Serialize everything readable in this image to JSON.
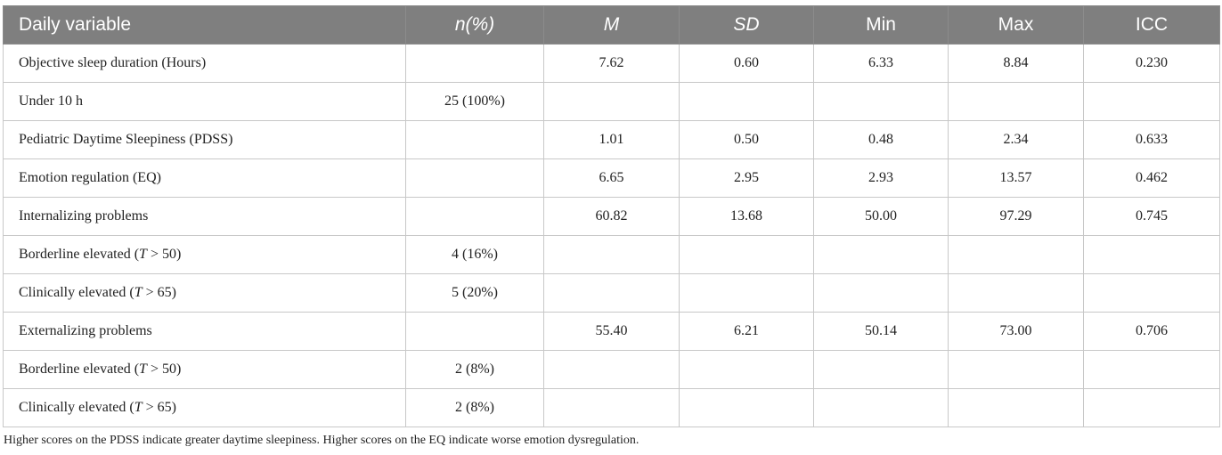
{
  "table": {
    "headers": [
      "Daily variable",
      "n(%)",
      "M",
      "SD",
      "Min",
      "Max",
      "ICC"
    ],
    "rows": [
      {
        "label": "Objective sleep duration (Hours)",
        "n": "",
        "m": "7.62",
        "sd": "0.60",
        "min": "6.33",
        "max": "8.84",
        "icc": "0.230"
      },
      {
        "label": "Under 10 h",
        "n": "25 (100%)",
        "m": "",
        "sd": "",
        "min": "",
        "max": "",
        "icc": ""
      },
      {
        "label": "Pediatric Daytime Sleepiness (PDSS)",
        "n": "",
        "m": "1.01",
        "sd": "0.50",
        "min": "0.48",
        "max": "2.34",
        "icc": "0.633"
      },
      {
        "label": "Emotion regulation (EQ)",
        "n": "",
        "m": "6.65",
        "sd": "2.95",
        "min": "2.93",
        "max": "13.57",
        "icc": "0.462"
      },
      {
        "label": "Internalizing problems",
        "n": "",
        "m": "60.82",
        "sd": "13.68",
        "min": "50.00",
        "max": "97.29",
        "icc": "0.745"
      },
      {
        "label_prefix": "Borderline elevated (",
        "label_var": "T",
        "label_suffix": " > 50)",
        "n": "4 (16%)",
        "m": "",
        "sd": "",
        "min": "",
        "max": "",
        "icc": ""
      },
      {
        "label_prefix": "Clinically elevated (",
        "label_var": "T",
        "label_suffix": " > 65)",
        "n": "5 (20%)",
        "m": "",
        "sd": "",
        "min": "",
        "max": "",
        "icc": ""
      },
      {
        "label": "Externalizing problems",
        "n": "",
        "m": "55.40",
        "sd": "6.21",
        "min": "50.14",
        "max": "73.00",
        "icc": "0.706"
      },
      {
        "label_prefix": "Borderline elevated (",
        "label_var": "T",
        "label_suffix": " > 50)",
        "n": "2 (8%)",
        "m": "",
        "sd": "",
        "min": "",
        "max": "",
        "icc": ""
      },
      {
        "label_prefix": "Clinically elevated (",
        "label_var": "T",
        "label_suffix": " > 65)",
        "n": "2 (8%)",
        "m": "",
        "sd": "",
        "min": "",
        "max": "",
        "icc": ""
      }
    ]
  },
  "note": "Higher scores on the PDSS indicate greater daytime sleepiness. Higher scores on the EQ indicate worse emotion dysregulation."
}
